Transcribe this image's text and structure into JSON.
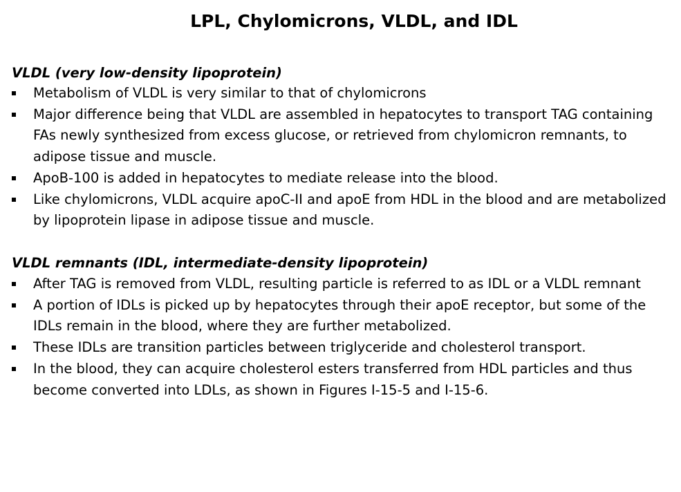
{
  "title": "LPL, Chylomicrons, VLDL, and IDL",
  "sections": [
    {
      "heading": "VLDL (very low-density lipoprotein)",
      "bullets": [
        "Metabolism of VLDL is very similar to that of chylomicrons",
        "Major difference being that VLDL are assembled in hepatocytes to transport TAG containing FAs newly synthesized from excess glucose, or retrieved from chylomicron remnants, to adipose tissue and muscle.",
        "ApoB-100 is added in hepatocytes to mediate release into the blood.",
        "Like chylomicrons, VLDL acquire apoC-II and apoE from HDL in the blood and are metabolized by lipoprotein lipase in adipose tissue and muscle."
      ]
    },
    {
      "heading": "VLDL remnants (IDL, intermediate-density lipoprotein)",
      "bullets": [
        "After TAG is removed from VLDL, resulting particle is referred to as IDL or a VLDL remnant",
        "A portion of IDLs is picked up by hepatocytes through their apoE receptor, but some of the IDLs remain in the blood, where they are further metabolized.",
        "These IDLs are transition particles between triglyceride and cholesterol transport.",
        "In the blood, they can acquire cholesterol esters transferred from HDL particles and thus become converted into LDLs, as shown in Figures I-15-5 and I-15-6."
      ]
    }
  ]
}
